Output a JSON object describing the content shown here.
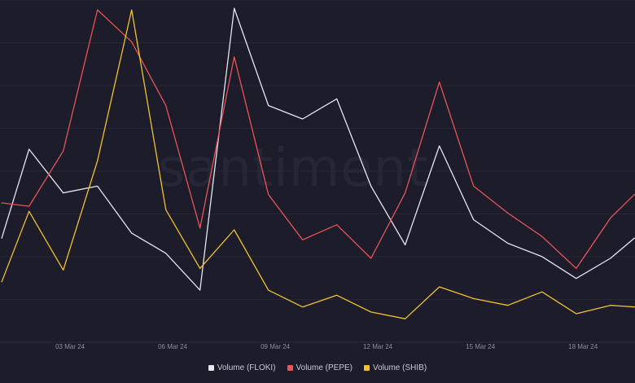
{
  "watermark": "santiment",
  "chart_data": {
    "type": "line",
    "title": "",
    "xlabel": "",
    "ylabel": "",
    "x": [
      "01 Mar 24",
      "02 Mar 24",
      "03 Mar 24",
      "04 Mar 24",
      "05 Mar 24",
      "06 Mar 24",
      "07 Mar 24",
      "08 Mar 24",
      "09 Mar 24",
      "10 Mar 24",
      "11 Mar 24",
      "12 Mar 24",
      "13 Mar 24",
      "14 Mar 24",
      "15 Mar 24",
      "16 Mar 24",
      "17 Mar 24",
      "18 Mar 24",
      "19 Mar 24",
      "20 Mar 24"
    ],
    "x_ticks": [
      "03 Mar 24",
      "06 Mar 24",
      "09 Mar 24",
      "12 Mar 24",
      "15 Mar 24",
      "18 Mar 24"
    ],
    "ylim": [
      0,
      100
    ],
    "y_ticks_shown": false,
    "grid": true,
    "legend_position": "bottom-center",
    "series": [
      {
        "name": "Volume (FLOKI)",
        "color": "#e6e6ef",
        "values": [
          [
            0.0,
            31.0
          ],
          [
            0.8,
            57.5
          ],
          [
            1.8,
            44.5
          ],
          [
            2.8,
            46.5
          ],
          [
            3.8,
            32.5
          ],
          [
            4.8,
            26.5
          ],
          [
            5.8,
            15.5
          ],
          [
            6.8,
            99.5
          ],
          [
            7.8,
            70.5
          ],
          [
            8.8,
            66.5
          ],
          [
            9.8,
            72.5
          ],
          [
            10.8,
            46.5
          ],
          [
            11.8,
            29.0
          ],
          [
            12.8,
            58.5
          ],
          [
            13.8,
            36.5
          ],
          [
            14.8,
            29.5
          ],
          [
            15.8,
            25.5
          ],
          [
            16.8,
            19.0
          ],
          [
            17.8,
            25.0
          ],
          [
            18.5,
            31.0
          ]
        ]
      },
      {
        "name": "Volume (PEPE)",
        "color": "#e85454",
        "values": [
          [
            0.0,
            41.5
          ],
          [
            0.8,
            40.5
          ],
          [
            1.8,
            57.0
          ],
          [
            2.8,
            99.0
          ],
          [
            3.8,
            89.5
          ],
          [
            4.8,
            70.5
          ],
          [
            5.8,
            34.0
          ],
          [
            6.8,
            85.0
          ],
          [
            7.8,
            44.0
          ],
          [
            8.8,
            30.5
          ],
          [
            9.8,
            35.0
          ],
          [
            10.8,
            25.0
          ],
          [
            11.8,
            44.5
          ],
          [
            12.8,
            77.5
          ],
          [
            13.8,
            46.5
          ],
          [
            14.8,
            38.5
          ],
          [
            15.8,
            31.5
          ],
          [
            16.8,
            22.0
          ],
          [
            17.8,
            37.0
          ],
          [
            18.5,
            44.0
          ]
        ]
      },
      {
        "name": "Volume (SHIB)",
        "color": "#f2c12e",
        "values": [
          [
            0.0,
            18.0
          ],
          [
            0.8,
            39.0
          ],
          [
            1.8,
            21.5
          ],
          [
            2.8,
            54.0
          ],
          [
            3.8,
            99.0
          ],
          [
            4.8,
            39.5
          ],
          [
            5.8,
            22.0
          ],
          [
            6.8,
            33.5
          ],
          [
            7.8,
            15.5
          ],
          [
            8.8,
            10.5
          ],
          [
            9.8,
            14.0
          ],
          [
            10.8,
            9.0
          ],
          [
            11.8,
            7.0
          ],
          [
            12.8,
            16.5
          ],
          [
            13.8,
            13.0
          ],
          [
            14.8,
            11.0
          ],
          [
            15.8,
            15.0
          ],
          [
            16.8,
            8.5
          ],
          [
            17.8,
            11.0
          ],
          [
            18.5,
            10.5
          ]
        ]
      }
    ]
  }
}
